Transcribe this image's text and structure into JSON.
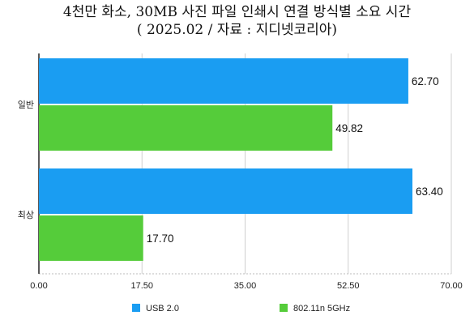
{
  "chart_data": {
    "type": "bar",
    "orientation": "horizontal",
    "title": "4천만 화소, 30MB 사진 파일 인쇄시 연결 방식별 소요 시간",
    "subtitle": "( 2025.02 / 자료 : 지디넷코리아)",
    "categories": [
      "일반",
      "최상"
    ],
    "series": [
      {
        "name": "USB 2.0",
        "color": "#1a9df2",
        "values": [
          62.7,
          63.4
        ],
        "labels": [
          "62.70",
          "63.40"
        ]
      },
      {
        "name": "802.11n 5GHz",
        "color": "#55cc3a",
        "values": [
          49.82,
          17.7
        ],
        "labels": [
          "49.82",
          "17.70"
        ]
      }
    ],
    "xlim": [
      0,
      70
    ],
    "xticks": [
      0,
      17.5,
      35,
      52.5,
      70
    ],
    "xtick_labels": [
      "0.00",
      "17.50",
      "35.00",
      "52.50",
      "70.00"
    ],
    "grid": true,
    "legend": "bottom"
  }
}
